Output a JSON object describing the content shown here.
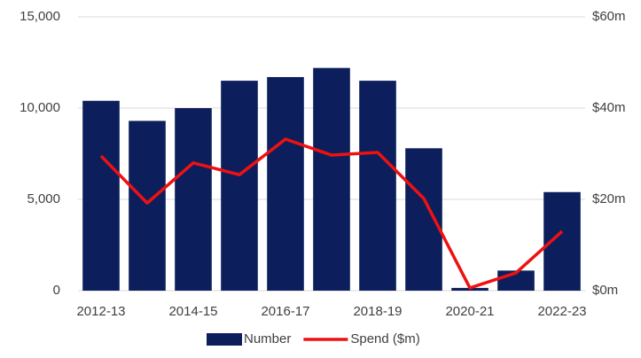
{
  "chart_data": {
    "type": "bar-line",
    "categories": [
      "2012-13",
      null,
      "2014-15",
      null,
      "2016-17",
      null,
      "2018-19",
      null,
      "2020-21",
      null,
      "2022-23"
    ],
    "series": [
      {
        "name": "Number",
        "color": "#0c1f5c",
        "type": "bar",
        "values": [
          10400,
          9300,
          10000,
          11500,
          11700,
          12200,
          11500,
          7800,
          150,
          1100,
          5400
        ]
      },
      {
        "name": "Spend ($m)",
        "color": "#ee1111",
        "type": "line",
        "axis": "y2",
        "values": [
          29.5,
          19.2,
          28,
          25.4,
          33.2,
          29.7,
          30.3,
          20.2,
          0.6,
          3.9,
          13
        ]
      }
    ],
    "ylim": [
      0,
      15000
    ],
    "yticks": [
      0,
      {
        "value": 5000,
        "label": "5,000"
      },
      {
        "value": 10000,
        "label": "10,000"
      },
      {
        "value": 15000,
        "label": "15,000"
      }
    ],
    "y2lim": [
      0,
      60
    ],
    "y2ticks": [
      {
        "value": 0,
        "label": "$0m"
      },
      {
        "value": 20,
        "label": "$20m"
      },
      {
        "value": 40,
        "label": "$40m"
      },
      {
        "value": 60,
        "label": "$60m"
      }
    ],
    "grid": true,
    "legend": "bottom"
  }
}
